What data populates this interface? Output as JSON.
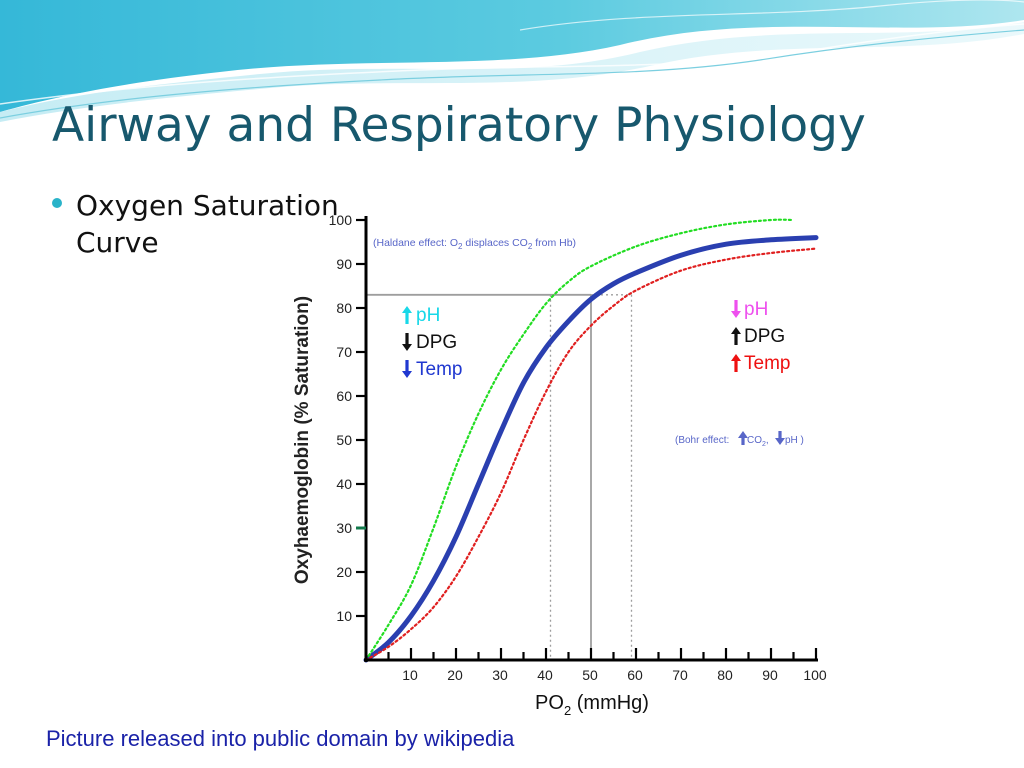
{
  "slide": {
    "title": "Airway and Respiratory Physiology",
    "bullet": "Oxygen Saturation Curve",
    "caption": "Picture released into public domain by wikipedia"
  },
  "colors": {
    "title": "#17586d",
    "bullet_dot": "#2ab3c9",
    "caption": "#1a22a8",
    "normal_curve": "#2a3fb0",
    "left_shift_curve": "#22dd22",
    "right_shift_curve": "#e02020",
    "haldane_note": "#5866c8"
  },
  "chart_data": {
    "type": "line",
    "xlabel": "PO",
    "xlabel_sub": "2",
    "xlabel_unit": " (mmHg)",
    "ylabel": "Oxyhaemoglobin (% Saturation)",
    "xlim": [
      0,
      100
    ],
    "ylim": [
      0,
      100
    ],
    "x_ticks": [
      10,
      20,
      30,
      40,
      50,
      60,
      70,
      80,
      90,
      100
    ],
    "y_ticks": [
      10,
      20,
      30,
      40,
      50,
      60,
      70,
      80,
      90,
      100
    ],
    "series": [
      {
        "id": "normal",
        "style": "solid",
        "color": "#2a3fb0",
        "x": [
          0,
          5,
          10,
          15,
          20,
          25,
          30,
          35,
          40,
          45,
          50,
          55,
          60,
          70,
          80,
          90,
          100
        ],
        "y": [
          0,
          4,
          10,
          18,
          28,
          40,
          52,
          63,
          71,
          77,
          82,
          85.5,
          88,
          92,
          94.5,
          95.5,
          96
        ]
      },
      {
        "id": "left-shift",
        "style": "dotted",
        "color": "#22dd22",
        "x": [
          0,
          5,
          10,
          15,
          20,
          25,
          30,
          35,
          40,
          45,
          50,
          60,
          70,
          80,
          90,
          95
        ],
        "y": [
          0,
          8,
          17,
          30,
          44,
          56,
          66,
          74,
          81,
          86,
          89.5,
          94,
          97,
          99,
          100,
          100
        ]
      },
      {
        "id": "right-shift",
        "style": "dotted",
        "color": "#e02020",
        "x": [
          0,
          5,
          10,
          15,
          20,
          25,
          30,
          35,
          40,
          45,
          50,
          55,
          60,
          70,
          80,
          90,
          100
        ],
        "y": [
          0,
          3,
          7,
          12,
          19,
          28,
          38,
          50,
          61,
          70,
          76,
          80.5,
          84,
          88.5,
          91,
          92.5,
          93.5
        ]
      }
    ],
    "reference_lines": [
      {
        "style": "solid",
        "color": "#9e9e9e",
        "x": 50,
        "y": 83
      },
      {
        "style": "dashed",
        "color": "#9e9e9e",
        "x": 41,
        "y": 83
      },
      {
        "style": "dashed",
        "color": "#9e9e9e",
        "x": 59,
        "y": 83
      }
    ],
    "axis_marker": {
      "y": 30,
      "color": "#137a4c"
    },
    "annotations": {
      "haldane": {
        "parts": [
          "(Haldane effect: O",
          "2",
          " displaces CO",
          "2",
          " from Hb)"
        ]
      },
      "left_group": [
        {
          "arrow": "up",
          "text": "pH",
          "arrow_color": "#18d8e8",
          "text_color": "#18d8e8"
        },
        {
          "arrow": "down",
          "text": "DPG",
          "arrow_color": "#111111",
          "text_color": "#111111"
        },
        {
          "arrow": "down",
          "text": "Temp",
          "arrow_color": "#2038d0",
          "text_color": "#2038d0"
        }
      ],
      "right_group": [
        {
          "arrow": "down",
          "text": "pH",
          "arrow_color": "#ee50ee",
          "text_color": "#ee50ee"
        },
        {
          "arrow": "up",
          "text": "DPG",
          "arrow_color": "#111111",
          "text_color": "#111111"
        },
        {
          "arrow": "up",
          "text": "Temp",
          "arrow_color": "#ee1111",
          "text_color": "#ee1111"
        }
      ],
      "bohr": {
        "prefix": "(Bohr effect:",
        "co2": " CO",
        "sub": "2",
        "comma": ",",
        "ph": "pH )"
      }
    }
  }
}
